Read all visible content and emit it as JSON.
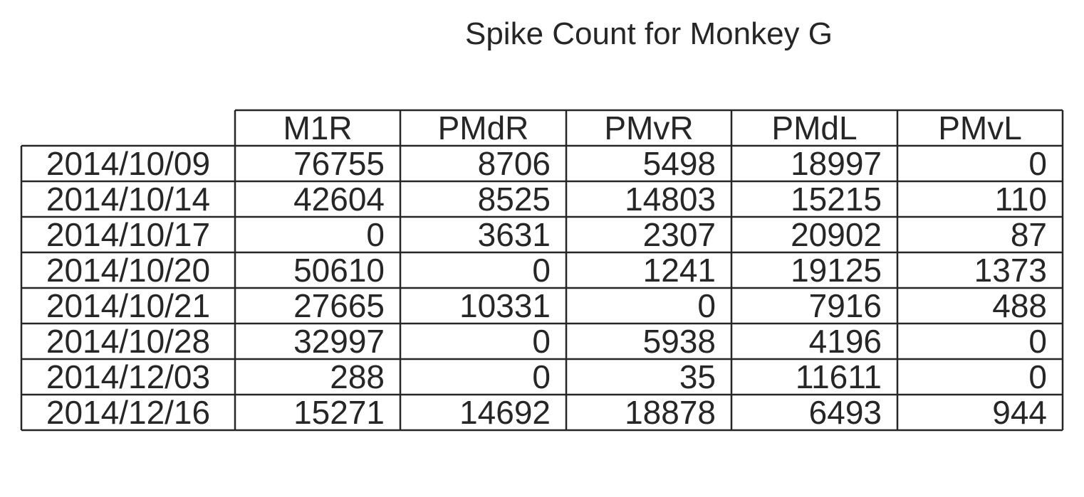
{
  "chart_data": {
    "type": "table",
    "title": "Spike Count for Monkey G",
    "columns": [
      "M1R",
      "PMdR",
      "PMvR",
      "PMdL",
      "PMvL"
    ],
    "row_labels": [
      "2014/10/09",
      "2014/10/14",
      "2014/10/17",
      "2014/10/20",
      "2014/10/21",
      "2014/10/28",
      "2014/12/03",
      "2014/12/16"
    ],
    "rows": [
      [
        76755,
        8706,
        5498,
        18997,
        0
      ],
      [
        42604,
        8525,
        14803,
        15215,
        110
      ],
      [
        0,
        3631,
        2307,
        20902,
        87
      ],
      [
        50610,
        0,
        1241,
        19125,
        1373
      ],
      [
        27665,
        10331,
        0,
        7916,
        488
      ],
      [
        32997,
        0,
        5938,
        4196,
        0
      ],
      [
        288,
        0,
        35,
        11611,
        0
      ],
      [
        15271,
        14692,
        18878,
        6493,
        944
      ]
    ]
  }
}
